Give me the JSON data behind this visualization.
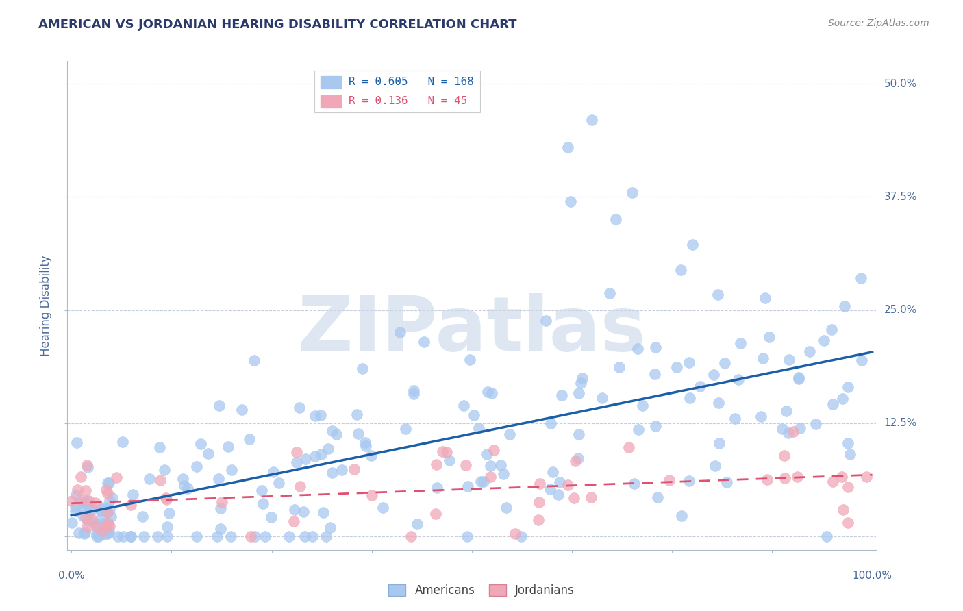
{
  "title": "AMERICAN VS JORDANIAN HEARING DISABILITY CORRELATION CHART",
  "source": "Source: ZipAtlas.com",
  "ylabel": "Hearing Disability",
  "ytick_vals": [
    0.0,
    0.125,
    0.25,
    0.375,
    0.5
  ],
  "ytick_labels": [
    "",
    "12.5%",
    "25.0%",
    "37.5%",
    "50.0%"
  ],
  "legend_american_R": "0.605",
  "legend_american_N": "168",
  "legend_jordanian_R": "0.136",
  "legend_jordanian_N": "45",
  "american_color": "#a8c8f0",
  "jordanian_color": "#f0a8b8",
  "american_line_color": "#1a5fa8",
  "jordanian_line_color": "#e05070",
  "background_color": "#ffffff",
  "watermark": "ZIPatlas",
  "watermark_color": "#c8d8e8",
  "title_color": "#2a3a6a",
  "axis_label_color": "#4a6a9a",
  "legend_text_color": "#1a5fa8",
  "legend_text_color2": "#e05070",
  "grid_color": "#c0c8d8",
  "spine_color": "#aabbcc"
}
